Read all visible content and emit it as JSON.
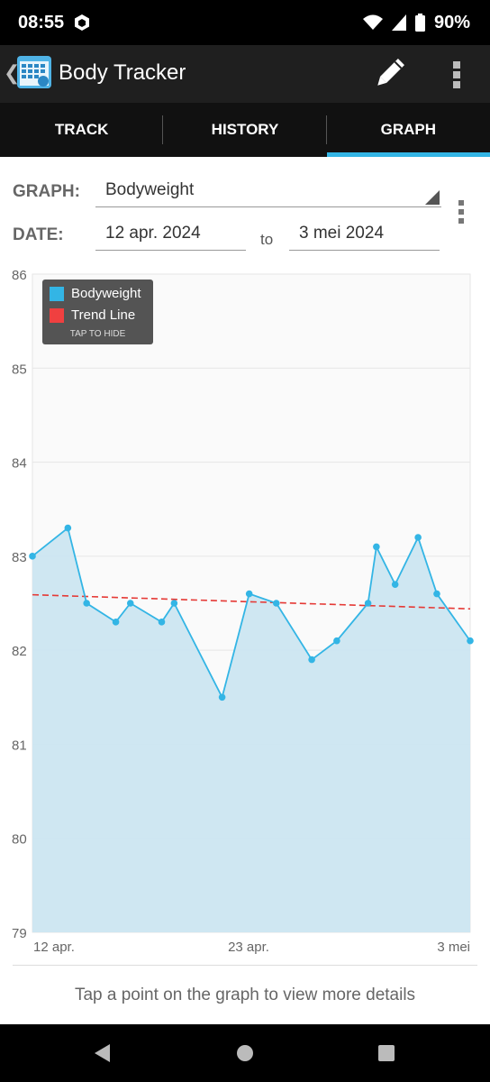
{
  "status": {
    "time": "08:55",
    "battery": "90%"
  },
  "app": {
    "title": "Body Tracker"
  },
  "tabs": [
    {
      "label": "TRACK",
      "active": false
    },
    {
      "label": "HISTORY",
      "active": false
    },
    {
      "label": "GRAPH",
      "active": true
    }
  ],
  "form": {
    "graph_label": "GRAPH:",
    "graph_value": "Bodyweight",
    "date_label": "DATE:",
    "date_from": "12 apr. 2024",
    "to": "to",
    "date_to": "3 mei 2024"
  },
  "legend": {
    "items": [
      {
        "label": "Bodyweight",
        "color": "#33b5e5"
      },
      {
        "label": "Trend Line",
        "color": "#f04040"
      }
    ],
    "hide_label": "TAP TO HIDE"
  },
  "hint": "Tap a point on the graph to view more details",
  "colors": {
    "accent": "#33b5e5",
    "trend": "#e53935",
    "area": "#cce6f1"
  },
  "chart_data": {
    "type": "line",
    "ylim": [
      79,
      86
    ],
    "yticks": [
      "86",
      "85",
      "84",
      "83",
      "82",
      "81",
      "80",
      "79"
    ],
    "xtick_labels": [
      "12 apr.",
      "23 apr.",
      "3 mei"
    ],
    "x_day_range": [
      12,
      33
    ],
    "series": [
      {
        "name": "Bodyweight",
        "points": [
          {
            "day": 12.0,
            "value": 83.0
          },
          {
            "day": 13.7,
            "value": 83.3
          },
          {
            "day": 14.6,
            "value": 82.5
          },
          {
            "day": 16.0,
            "value": 82.3
          },
          {
            "day": 16.7,
            "value": 82.5
          },
          {
            "day": 18.2,
            "value": 82.3
          },
          {
            "day": 18.8,
            "value": 82.5
          },
          {
            "day": 21.1,
            "value": 81.5
          },
          {
            "day": 22.4,
            "value": 82.6
          },
          {
            "day": 23.7,
            "value": 82.5
          },
          {
            "day": 25.4,
            "value": 81.9
          },
          {
            "day": 26.6,
            "value": 82.1
          },
          {
            "day": 28.1,
            "value": 82.5
          },
          {
            "day": 28.5,
            "value": 83.1
          },
          {
            "day": 29.4,
            "value": 82.7
          },
          {
            "day": 30.5,
            "value": 83.2
          },
          {
            "day": 31.4,
            "value": 82.6
          },
          {
            "day": 33.0,
            "value": 82.1
          }
        ]
      },
      {
        "name": "Trend Line",
        "points": [
          {
            "day": 12.0,
            "value": 82.59
          },
          {
            "day": 33.0,
            "value": 82.44
          }
        ]
      }
    ]
  }
}
